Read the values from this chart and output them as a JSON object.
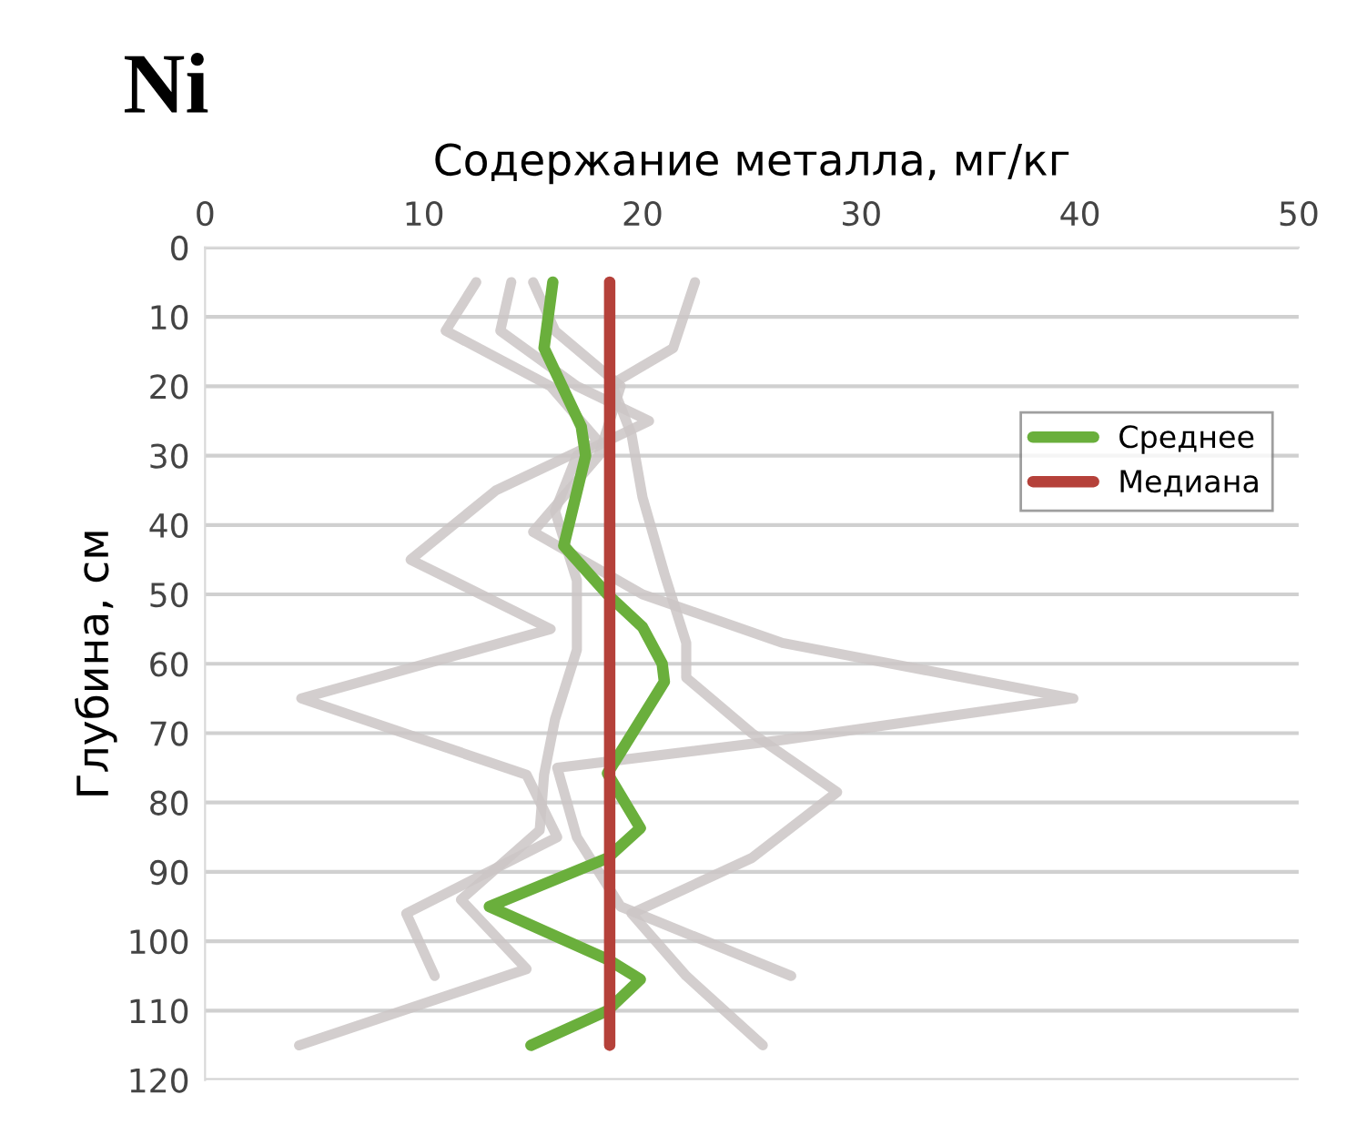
{
  "chart_data": {
    "type": "line",
    "orientation": "horizontal",
    "title": "Ni",
    "xlabel": "Содержание металла, мг/кг",
    "ylabel": "Глубина, см",
    "xlim": [
      0,
      50
    ],
    "xticks": [
      0,
      10,
      20,
      30,
      40,
      50
    ],
    "ylim": [
      120,
      0
    ],
    "yticks": [
      0,
      10,
      20,
      30,
      40,
      50,
      60,
      70,
      80,
      90,
      100,
      110,
      120
    ],
    "grid": "y",
    "legend": "top right",
    "marker": "none",
    "line_style": "solid",
    "series": [
      {
        "color": "#cbc6c6",
        "x": [
          5,
          12,
          20,
          28,
          35,
          45,
          55,
          65,
          76,
          85,
          96,
          105
        ],
        "values": [
          12.4,
          11,
          15.8,
          18,
          13.3,
          9.4,
          15.8,
          4.4,
          14.7,
          16.1,
          9.2,
          10.5
        ]
      },
      {
        "color": "#cbc6c6",
        "x": [
          5,
          12,
          20,
          25,
          30,
          38,
          48,
          58,
          68,
          76,
          84,
          94,
          104,
          115
        ],
        "values": [
          14,
          13.5,
          17,
          20.3,
          17,
          16,
          17,
          17,
          16,
          15.5,
          15.3,
          11.7,
          14.7,
          4.3
        ]
      },
      {
        "color": "#cbc6c6",
        "x": [
          5,
          12,
          20,
          30,
          41,
          50,
          57,
          65,
          71,
          75,
          85,
          95,
          105
        ],
        "values": [
          15,
          16,
          19,
          18,
          15,
          20,
          26.4,
          39.7,
          26.4,
          16.1,
          17,
          19,
          26.8
        ]
      },
      {
        "color": "#cbc6c6",
        "x": [
          5,
          14.5,
          19.7,
          27,
          36,
          47,
          57,
          62,
          70,
          78.5,
          88,
          96,
          105,
          115
        ],
        "values": [
          22.4,
          21.4,
          18.6,
          19.5,
          20,
          21,
          22,
          22,
          25,
          28.9,
          25,
          19.5,
          22,
          25.5
        ]
      },
      {
        "name": "Среднее",
        "color": "#6aaf3c",
        "x": [
          5,
          14.5,
          25.8,
          30,
          43,
          50,
          54.7,
          60,
          62.6,
          75.8,
          83.7,
          88,
          95,
          102.6,
          105.5,
          110,
          115
        ],
        "values": [
          15.9,
          15.5,
          17.2,
          17.4,
          16.4,
          18.4,
          20,
          20.9,
          21,
          18.4,
          19.9,
          18.4,
          13,
          18.4,
          19.9,
          18.4,
          14.9
        ]
      },
      {
        "name": "Медиана",
        "color": "#b5413a",
        "x": [
          5,
          115
        ],
        "values": [
          18.5,
          18.5
        ]
      }
    ]
  }
}
